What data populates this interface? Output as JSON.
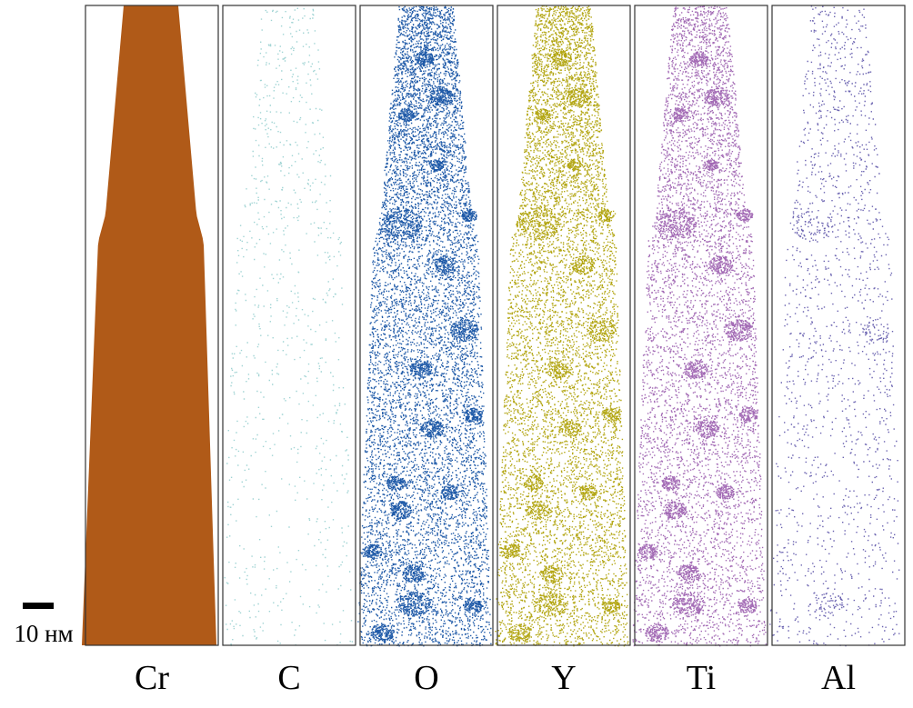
{
  "panels": [
    {
      "label": "Cr",
      "color": "#b05a18"
    },
    {
      "label": "C",
      "color": "#9fd3d3"
    },
    {
      "label": "O",
      "color": "#1f5aa8"
    },
    {
      "label": "Y",
      "color": "#b3a613"
    },
    {
      "label": "Ti",
      "color": "#a36bb5"
    },
    {
      "label": "Al",
      "color": "#6a62b0"
    }
  ],
  "scale_bar": {
    "label": "10 нм"
  }
}
